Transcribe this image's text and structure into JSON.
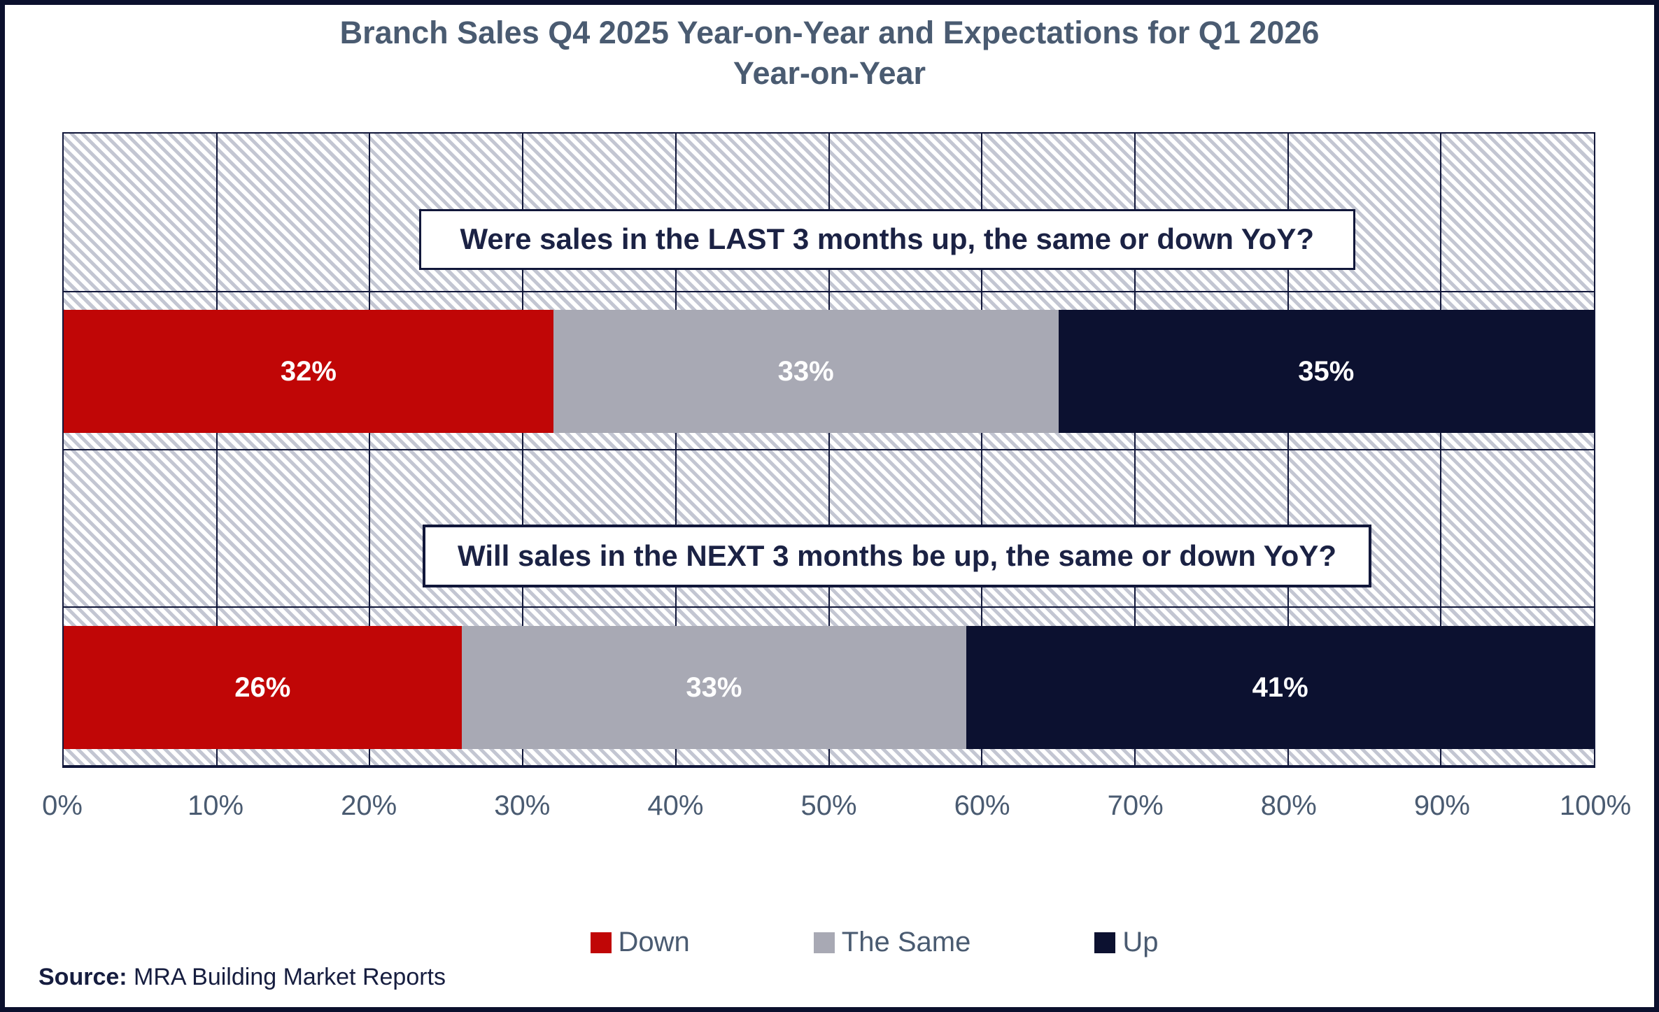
{
  "title": {
    "line1": "Branch Sales Q4 2025 Year-on-Year and Expectations for Q1 2026",
    "line2": "Year-on-Year"
  },
  "colors": {
    "down": "#c00606",
    "same": "#a8a9b4",
    "up": "#0c1130",
    "grid": "#11173a",
    "title_text": "#4a5b71",
    "dark_text": "#1b2244"
  },
  "x_axis": {
    "ticks": [
      "0%",
      "10%",
      "20%",
      "30%",
      "40%",
      "50%",
      "60%",
      "70%",
      "80%",
      "90%",
      "100%"
    ]
  },
  "legend": {
    "items": [
      {
        "label": "Down"
      },
      {
        "label": "The Same"
      },
      {
        "label": "Up"
      }
    ]
  },
  "rows": [
    {
      "question": "Were sales in the LAST 3 months up, the same or down YoY?",
      "segments": [
        {
          "name": "Down",
          "value": 32,
          "label": "32%"
        },
        {
          "name": "The Same",
          "value": 33,
          "label": "33%"
        },
        {
          "name": "Up",
          "value": 35,
          "label": "35%"
        }
      ]
    },
    {
      "question": "Will sales in the NEXT 3 months be up, the same or down YoY?",
      "segments": [
        {
          "name": "Down",
          "value": 26,
          "label": "26%"
        },
        {
          "name": "The Same",
          "value": 33,
          "label": "33%"
        },
        {
          "name": "Up",
          "value": 41,
          "label": "41%"
        }
      ]
    }
  ],
  "source": {
    "label": "Source:",
    "text": " MRA Building Market Reports"
  },
  "chart_data": {
    "type": "bar",
    "orientation": "horizontal_stacked",
    "categories": [
      "Were sales in the LAST 3 months up, the same or down YoY?",
      "Will sales in the NEXT 3 months be up, the same or down YoY?"
    ],
    "series": [
      {
        "name": "Down",
        "values": [
          32,
          26
        ],
        "color": "#c00606"
      },
      {
        "name": "The Same",
        "values": [
          33,
          33
        ],
        "color": "#a8a9b4"
      },
      {
        "name": "Up",
        "values": [
          35,
          41
        ],
        "color": "#0c1130"
      }
    ],
    "title": "Branch Sales Q4 2025 Year-on-Year and Expectations for Q1 2026 Year-on-Year",
    "xlabel": "",
    "ylabel": "",
    "xlim": [
      0,
      100
    ],
    "x_tick_step": 10,
    "x_tick_format": "percent",
    "data_labels": [
      [
        "32%",
        "33%",
        "35%"
      ],
      [
        "26%",
        "33%",
        "41%"
      ]
    ],
    "grid": true,
    "plot_background": "diagonal-hatch",
    "legend_position": "bottom",
    "source": "Source: MRA Building Market Reports"
  }
}
